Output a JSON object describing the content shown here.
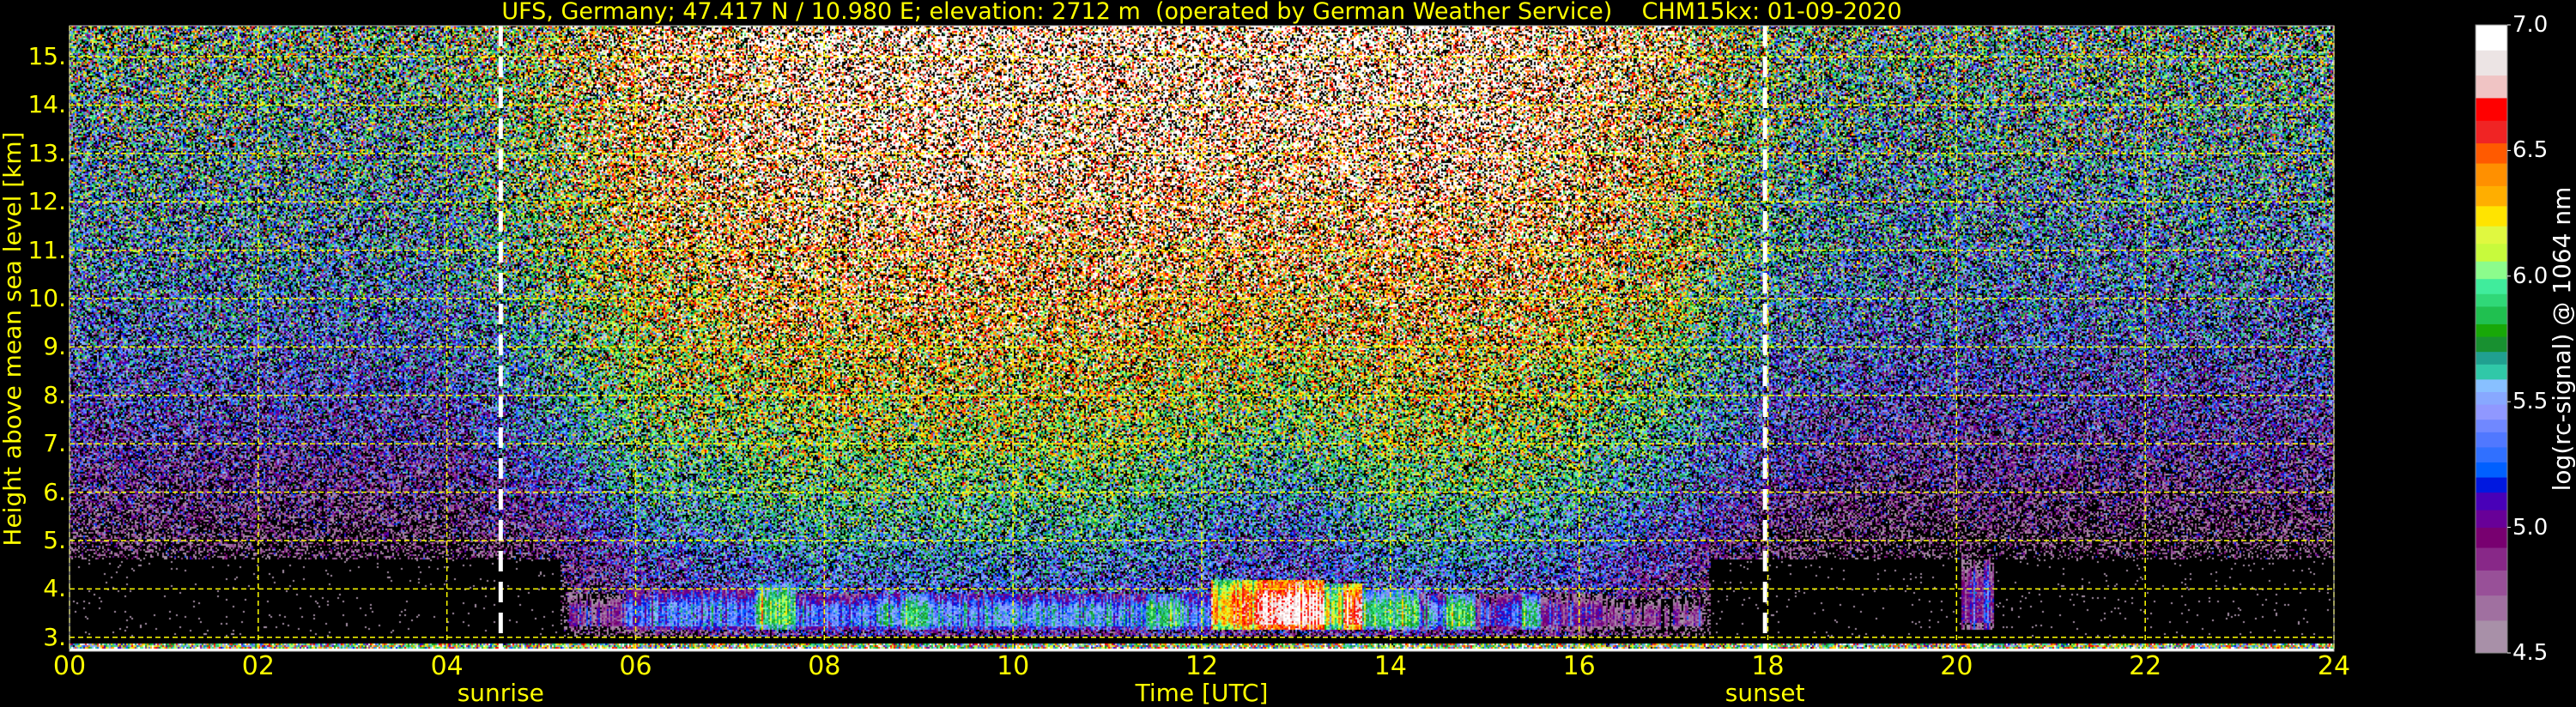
{
  "title": "UFS, Germany; 47.417 N / 10.980 E; elevation: 2712 m  (operated by German Weather Service)    CHM15kx: 01-09-2020",
  "colors": {
    "background": "#000000",
    "axis_text": "#ffff00",
    "grid": "#ffff00",
    "annotation_line": "#ffffff",
    "colorbar_text": "#ffffff"
  },
  "chart_data": {
    "type": "heatmap",
    "xlabel": "Time [UTC]",
    "ylabel": "Height above mean sea level [km]",
    "xlim": [
      0,
      24
    ],
    "ylim": [
      2.712,
      15.64
    ],
    "grid": true,
    "xticks": [
      {
        "value": 0,
        "label": "00"
      },
      {
        "value": 2,
        "label": "02"
      },
      {
        "value": 4,
        "label": "04"
      },
      {
        "value": 6,
        "label": "06"
      },
      {
        "value": 8,
        "label": "08"
      },
      {
        "value": 10,
        "label": "10"
      },
      {
        "value": 12,
        "label": "12"
      },
      {
        "value": 14,
        "label": "14"
      },
      {
        "value": 16,
        "label": "16"
      },
      {
        "value": 18,
        "label": "18"
      },
      {
        "value": 20,
        "label": "20"
      },
      {
        "value": 22,
        "label": "22"
      },
      {
        "value": 24,
        "label": "24"
      }
    ],
    "yticks": [
      {
        "value": 3,
        "label": "3."
      },
      {
        "value": 4,
        "label": "4."
      },
      {
        "value": 5,
        "label": "5."
      },
      {
        "value": 6,
        "label": "6."
      },
      {
        "value": 7,
        "label": "7."
      },
      {
        "value": 8,
        "label": "8."
      },
      {
        "value": 9,
        "label": "9."
      },
      {
        "value": 10,
        "label": "10."
      },
      {
        "value": 11,
        "label": "11."
      },
      {
        "value": 12,
        "label": "12."
      },
      {
        "value": 13,
        "label": "13."
      },
      {
        "value": 14,
        "label": "14."
      },
      {
        "value": 15,
        "label": "15."
      }
    ],
    "annotations": [
      {
        "label": "sunrise",
        "x": 4.57
      },
      {
        "label": "sunset",
        "x": 17.97
      }
    ],
    "colorbar": {
      "label": "log(rc-signal) @ 1064 nm",
      "min": 4.5,
      "max": 7.0,
      "ticks": [
        {
          "value": 4.5,
          "label": "4.5"
        },
        {
          "value": 5.0,
          "label": "5.0"
        },
        {
          "value": 5.5,
          "label": "5.5"
        },
        {
          "value": 6.0,
          "label": "6.0"
        },
        {
          "value": 6.5,
          "label": "6.5"
        },
        {
          "value": 7.0,
          "label": "7.0"
        }
      ],
      "levels": [
        4.5,
        4.63,
        4.73,
        4.83,
        4.92,
        5.0,
        5.07,
        5.14,
        5.2,
        5.26,
        5.32,
        5.38,
        5.43,
        5.49,
        5.54,
        5.59,
        5.65,
        5.7,
        5.76,
        5.81,
        5.88,
        5.93,
        5.99,
        6.06,
        6.13,
        6.2,
        6.28,
        6.36,
        6.45,
        6.53,
        6.62,
        6.71,
        6.8,
        6.9,
        7.0
      ],
      "colors": [
        "#a890a8",
        "#a070a0",
        "#985098",
        "#882888",
        "#780070",
        "#680098",
        "#4800b8",
        "#0018e0",
        "#0060ff",
        "#3070ff",
        "#5078ff",
        "#7088ff",
        "#9098ff",
        "#88a8ff",
        "#88c0ff",
        "#30c8a8",
        "#20a090",
        "#189030",
        "#18a808",
        "#20c050",
        "#30d878",
        "#40ec9c",
        "#8cfc8c",
        "#c8fa3c",
        "#e0f840",
        "#ffe400",
        "#ffae00",
        "#ff9000",
        "#ff5a00",
        "#f02424",
        "#ff0000",
        "#f0c4c4",
        "#ece4e4",
        "#ffffff"
      ]
    },
    "background_signal": {
      "times": [
        0,
        1,
        2,
        3,
        4,
        5,
        6,
        7,
        8,
        9,
        10,
        11,
        12,
        13,
        14,
        15,
        16,
        17,
        18,
        19,
        20,
        21,
        22,
        23,
        24
      ],
      "heights": [
        4,
        5,
        6,
        7,
        8,
        9,
        10,
        11,
        12,
        13,
        14,
        15
      ],
      "values": [
        [
          4.3,
          4.55,
          4.8,
          5.0,
          5.15,
          5.3,
          5.4,
          5.5,
          5.55,
          5.6,
          5.7,
          5.8
        ],
        [
          4.3,
          4.55,
          4.8,
          5.0,
          5.15,
          5.3,
          5.4,
          5.5,
          5.55,
          5.6,
          5.7,
          5.8
        ],
        [
          4.3,
          4.55,
          4.8,
          5.0,
          5.15,
          5.3,
          5.4,
          5.5,
          5.55,
          5.6,
          5.7,
          5.8
        ],
        [
          4.3,
          4.55,
          4.8,
          5.0,
          5.15,
          5.3,
          5.4,
          5.5,
          5.55,
          5.6,
          5.7,
          5.8
        ],
        [
          4.3,
          4.55,
          4.8,
          5.0,
          5.15,
          5.3,
          5.4,
          5.5,
          5.55,
          5.6,
          5.7,
          5.8
        ],
        [
          4.5,
          4.8,
          5.1,
          5.35,
          5.5,
          5.65,
          5.8,
          5.9,
          6.0,
          6.05,
          6.1,
          6.15
        ],
        [
          5.0,
          5.3,
          5.6,
          5.8,
          5.95,
          6.1,
          6.2,
          6.35,
          6.45,
          6.5,
          6.6,
          6.65
        ],
        [
          5.2,
          5.5,
          5.75,
          5.95,
          6.1,
          6.25,
          6.4,
          6.5,
          6.6,
          6.7,
          6.75,
          6.8
        ],
        [
          5.3,
          5.6,
          5.85,
          6.05,
          6.2,
          6.35,
          6.5,
          6.6,
          6.75,
          6.85,
          6.9,
          6.95
        ],
        [
          5.3,
          5.6,
          5.85,
          6.05,
          6.2,
          6.35,
          6.5,
          6.6,
          6.75,
          6.85,
          6.9,
          6.95
        ],
        [
          5.3,
          5.6,
          5.85,
          6.05,
          6.2,
          6.35,
          6.5,
          6.6,
          6.75,
          6.85,
          6.9,
          6.95
        ],
        [
          5.3,
          5.6,
          5.85,
          6.05,
          6.2,
          6.35,
          6.5,
          6.6,
          6.75,
          6.85,
          6.9,
          6.95
        ],
        [
          5.3,
          5.4,
          5.6,
          5.9,
          6.1,
          6.3,
          6.45,
          6.6,
          6.75,
          6.85,
          6.9,
          6.95
        ],
        [
          5.2,
          5.2,
          5.5,
          5.8,
          6.05,
          6.25,
          6.4,
          6.55,
          6.7,
          6.8,
          6.9,
          6.95
        ],
        [
          5.3,
          5.6,
          5.85,
          6.05,
          6.2,
          6.35,
          6.5,
          6.6,
          6.75,
          6.85,
          6.9,
          6.95
        ],
        [
          5.3,
          5.6,
          5.85,
          6.05,
          6.2,
          6.35,
          6.5,
          6.6,
          6.75,
          6.85,
          6.9,
          6.95
        ],
        [
          5.1,
          5.4,
          5.7,
          5.9,
          6.05,
          6.2,
          6.35,
          6.5,
          6.6,
          6.7,
          6.75,
          6.8
        ],
        [
          4.8,
          5.1,
          5.4,
          5.6,
          5.8,
          5.95,
          6.1,
          6.2,
          6.3,
          6.4,
          6.45,
          6.5
        ],
        [
          4.4,
          4.7,
          4.95,
          5.15,
          5.3,
          5.45,
          5.55,
          5.65,
          5.75,
          5.8,
          5.85,
          5.9
        ],
        [
          4.2,
          4.5,
          4.75,
          4.95,
          5.1,
          5.25,
          5.35,
          5.45,
          5.5,
          5.6,
          5.65,
          5.75
        ],
        [
          4.2,
          4.5,
          4.75,
          4.95,
          5.1,
          5.25,
          5.35,
          5.45,
          5.5,
          5.6,
          5.65,
          5.75
        ],
        [
          4.2,
          4.5,
          4.75,
          4.95,
          5.1,
          5.25,
          5.35,
          5.45,
          5.5,
          5.6,
          5.65,
          5.75
        ],
        [
          4.2,
          4.5,
          4.75,
          4.95,
          5.1,
          5.25,
          5.35,
          5.45,
          5.5,
          5.6,
          5.65,
          5.75
        ],
        [
          4.2,
          4.5,
          4.75,
          4.95,
          5.1,
          5.25,
          5.35,
          5.45,
          5.5,
          5.6,
          5.65,
          5.75
        ],
        [
          4.2,
          4.5,
          4.75,
          4.95,
          5.1,
          5.25,
          5.35,
          5.45,
          5.5,
          5.6,
          5.65,
          5.75
        ]
      ]
    },
    "boundary_layer": {
      "base_km": 3.15,
      "segments": [
        {
          "start": 5.3,
          "end": 5.9,
          "value": 4.85,
          "top_km": 3.9
        },
        {
          "start": 5.9,
          "end": 7.3,
          "value": 5.35,
          "top_km": 4.0
        },
        {
          "start": 7.3,
          "end": 7.7,
          "value": 5.9,
          "top_km": 4.1
        },
        {
          "start": 7.7,
          "end": 8.8,
          "value": 5.4,
          "top_km": 3.9
        },
        {
          "start": 8.8,
          "end": 9.1,
          "value": 5.8,
          "top_km": 3.9
        },
        {
          "start": 9.1,
          "end": 11.4,
          "value": 5.45,
          "top_km": 3.9
        },
        {
          "start": 11.4,
          "end": 11.8,
          "value": 5.8,
          "top_km": 3.9
        },
        {
          "start": 11.8,
          "end": 12.1,
          "value": 5.45,
          "top_km": 3.9
        },
        {
          "start": 12.1,
          "end": 12.6,
          "value": 6.45,
          "top_km": 4.2
        },
        {
          "start": 12.6,
          "end": 13.3,
          "value": 6.85,
          "top_km": 4.2
        },
        {
          "start": 13.3,
          "end": 13.5,
          "value": 6.1,
          "top_km": 4.1
        },
        {
          "start": 13.5,
          "end": 13.7,
          "value": 6.7,
          "top_km": 4.1
        },
        {
          "start": 13.7,
          "end": 14.3,
          "value": 5.85,
          "top_km": 4.0
        },
        {
          "start": 14.3,
          "end": 14.6,
          "value": 5.4,
          "top_km": 3.9
        },
        {
          "start": 14.6,
          "end": 14.9,
          "value": 5.9,
          "top_km": 3.9
        },
        {
          "start": 14.9,
          "end": 15.4,
          "value": 5.15,
          "top_km": 3.9
        },
        {
          "start": 15.4,
          "end": 15.6,
          "value": 5.8,
          "top_km": 3.9
        },
        {
          "start": 15.6,
          "end": 16.3,
          "value": 4.95,
          "top_km": 3.9
        },
        {
          "start": 16.3,
          "end": 17.3,
          "value": 4.75,
          "top_km": 3.8
        },
        {
          "start": 20.05,
          "end": 20.4,
          "value": 5.0,
          "top_km": 4.6
        }
      ]
    }
  }
}
